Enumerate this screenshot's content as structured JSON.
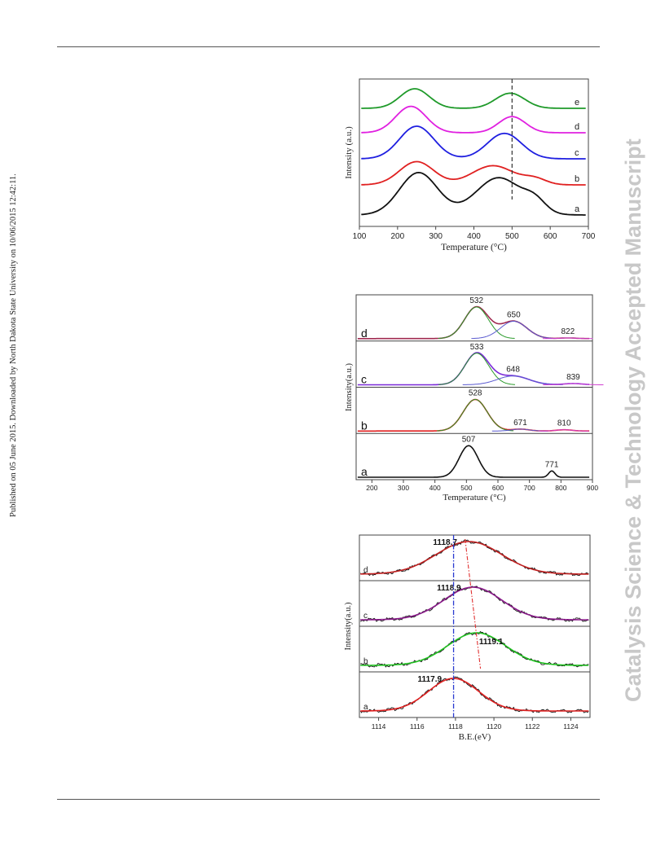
{
  "sidebar_left": "Published on 05 June 2015. Downloaded by North Dakota State University on 10/06/2015 12:42:11.",
  "sidebar_right": "Catalysis Science & Technology Accepted Manuscript",
  "chart_data": [
    {
      "type": "line",
      "xlabel": "Temperature (°C)",
      "ylabel": "Intensity (a.u.)",
      "xlim": [
        100,
        700
      ],
      "x_ticks": [
        "100",
        "200",
        "300",
        "400",
        "500",
        "600",
        "700"
      ],
      "grid": false,
      "reference_line_x": 500,
      "series": [
        {
          "name": "a",
          "color": "#111111",
          "offset": 0,
          "peaks": [
            {
              "center": 255,
              "height": 1.0,
              "width": 50
            },
            {
              "center": 465,
              "height": 0.88,
              "width": 60
            },
            {
              "center": 560,
              "height": 0.25,
              "width": 28
            }
          ]
        },
        {
          "name": "b",
          "color": "#e02020",
          "offset": 1,
          "peaks": [
            {
              "center": 250,
              "height": 0.75,
              "width": 45
            },
            {
              "center": 450,
              "height": 0.62,
              "width": 55
            },
            {
              "center": 560,
              "height": 0.18,
              "width": 30
            }
          ]
        },
        {
          "name": "c",
          "color": "#1f1fe0",
          "offset": 2,
          "peaks": [
            {
              "center": 250,
              "height": 1.0,
              "width": 45
            },
            {
              "center": 480,
              "height": 0.78,
              "width": 45
            }
          ]
        },
        {
          "name": "d",
          "color": "#e020e0",
          "offset": 3,
          "peaks": [
            {
              "center": 235,
              "height": 0.9,
              "width": 40
            },
            {
              "center": 500,
              "height": 0.55,
              "width": 35
            }
          ]
        },
        {
          "name": "e",
          "color": "#1f9a2a",
          "offset": 4,
          "peaks": [
            {
              "center": 245,
              "height": 0.75,
              "width": 38
            },
            {
              "center": 495,
              "height": 0.58,
              "width": 38
            }
          ]
        }
      ]
    },
    {
      "type": "line",
      "xlabel": "Temperature (°C)",
      "ylabel": "Intensity(a.u.)",
      "xlim": [
        150,
        900
      ],
      "x_ticks": [
        "200",
        "300",
        "400",
        "500",
        "600",
        "700",
        "800",
        "900"
      ],
      "grid": false,
      "panels": [
        {
          "name": "a",
          "color": "#111111",
          "peaks": [
            {
              "center": 507,
              "height": 1.0,
              "width": 30
            },
            {
              "center": 771,
              "height": 0.2,
              "width": 10
            }
          ],
          "labels": [
            {
              "text": "507",
              "x": 507
            },
            {
              "text": "771",
              "x": 771
            }
          ]
        },
        {
          "name": "b",
          "color": "#e02020",
          "peaks": [
            {
              "center": 528,
              "height": 1.0,
              "width": 38
            },
            {
              "center": 671,
              "height": 0.06,
              "width": 28
            },
            {
              "center": 810,
              "height": 0.04,
              "width": 25
            }
          ],
          "labels": [
            {
              "text": "528",
              "x": 528
            },
            {
              "text": "671",
              "x": 671
            },
            {
              "text": "810",
              "x": 810
            }
          ]
        },
        {
          "name": "c",
          "color": "#7a2ad8",
          "peaks": [
            {
              "center": 533,
              "height": 1.0,
              "width": 38
            },
            {
              "center": 648,
              "height": 0.28,
              "width": 50
            },
            {
              "center": 839,
              "height": 0.04,
              "width": 30
            }
          ],
          "labels": [
            {
              "text": "533",
              "x": 533
            },
            {
              "text": "648",
              "x": 648
            },
            {
              "text": "839",
              "x": 839
            }
          ]
        },
        {
          "name": "d",
          "color": "#a02a50",
          "peaks": [
            {
              "center": 532,
              "height": 1.0,
              "width": 38
            },
            {
              "center": 650,
              "height": 0.55,
              "width": 42
            },
            {
              "center": 822,
              "height": 0.02,
              "width": 25
            }
          ],
          "labels": [
            {
              "text": "532",
              "x": 532
            },
            {
              "text": "650",
              "x": 650
            },
            {
              "text": "822",
              "x": 822
            }
          ]
        }
      ]
    },
    {
      "type": "line",
      "xlabel": "B.E.(eV)",
      "ylabel": "Intensity(a.u.)",
      "xlim": [
        1113,
        1125
      ],
      "x_ticks": [
        "1114",
        "1116",
        "1118",
        "1120",
        "1122",
        "1124"
      ],
      "grid": false,
      "reference_line_x": 1117.9,
      "shift_line": {
        "from_x": 1118.5,
        "to_x": 1119.3
      },
      "panels": [
        {
          "name": "a",
          "color": "#e02020",
          "center": 1117.9,
          "width": 1.3,
          "label": "1117.9"
        },
        {
          "name": "b",
          "color": "#20c020",
          "center": 1119.1,
          "width": 1.5,
          "label": "1119.1"
        },
        {
          "name": "c",
          "color": "#8a1a8a",
          "center": 1118.9,
          "width": 1.5,
          "label": "1118.9"
        },
        {
          "name": "d",
          "color": "#c02020",
          "center": 1118.7,
          "width": 1.7,
          "label": "1118.7"
        }
      ]
    }
  ]
}
